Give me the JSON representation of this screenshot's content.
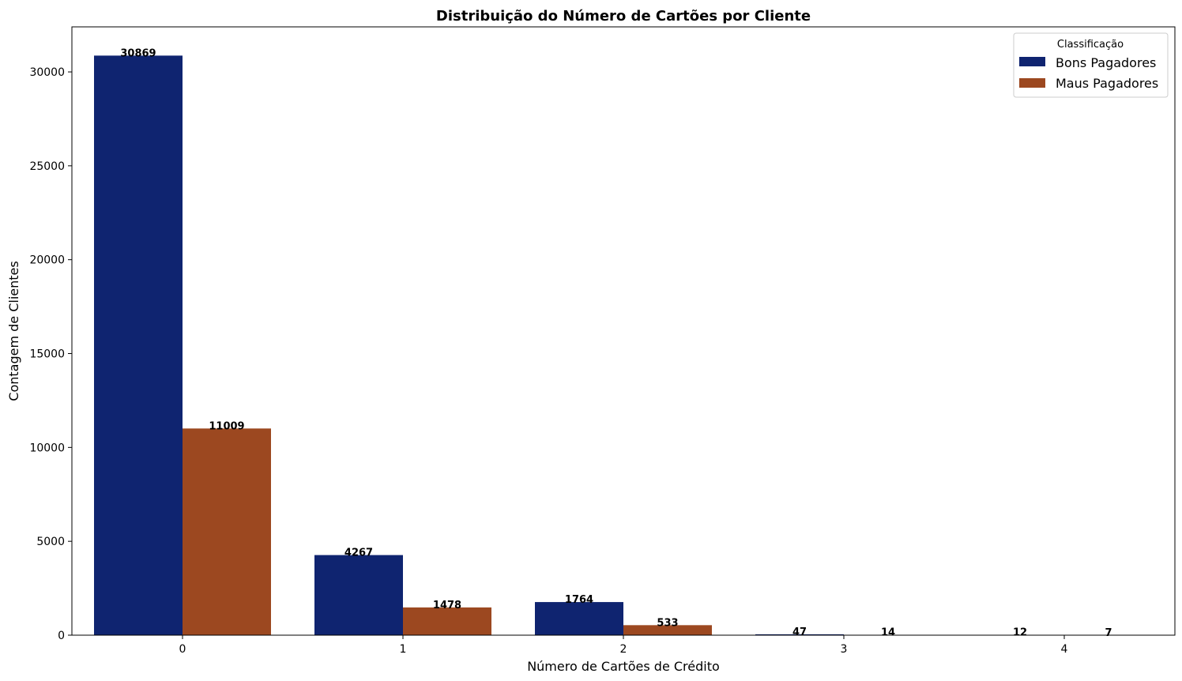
{
  "chart_data": {
    "type": "bar",
    "title": "Distribuição do Número de Cartões por Cliente",
    "xlabel": "Número de Cartões de Crédito",
    "ylabel": "Contagem de Clientes",
    "categories": [
      "0",
      "1",
      "2",
      "3",
      "4"
    ],
    "series": [
      {
        "name": "Bons Pagadores",
        "color": "#0f2470",
        "values": [
          30869,
          4267,
          1764,
          47,
          12
        ]
      },
      {
        "name": "Maus Pagadores",
        "color": "#9c4820",
        "values": [
          11009,
          1478,
          533,
          14,
          7
        ]
      }
    ],
    "ylim": [
      0,
      32400
    ],
    "yticks": [
      0,
      5000,
      10000,
      15000,
      20000,
      25000,
      30000
    ],
    "legend": {
      "title": "Classificação",
      "position": "top-right"
    },
    "grid": false
  }
}
